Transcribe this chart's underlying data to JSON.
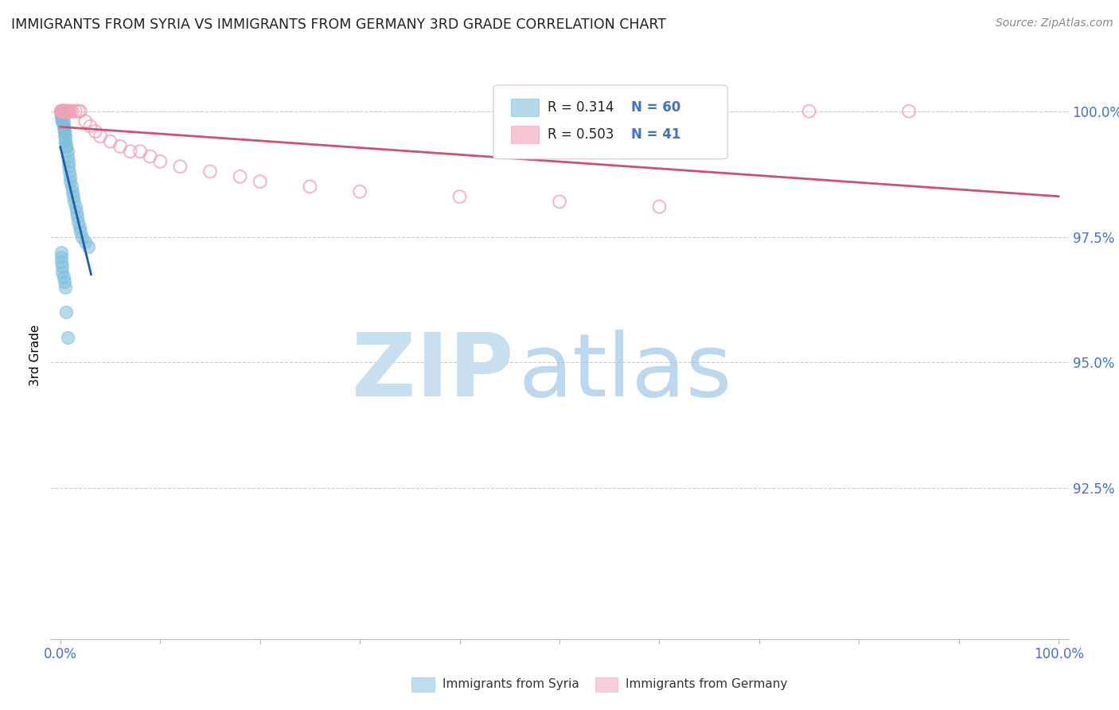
{
  "title": "IMMIGRANTS FROM SYRIA VS IMMIGRANTS FROM GERMANY 3RD GRADE CORRELATION CHART",
  "source": "Source: ZipAtlas.com",
  "ylabel": "3rd Grade",
  "yaxis_labels": [
    "100.0%",
    "97.5%",
    "95.0%",
    "92.5%"
  ],
  "yaxis_values": [
    1.0,
    0.975,
    0.95,
    0.925
  ],
  "xaxis_range": [
    0.0,
    1.0
  ],
  "yaxis_range": [
    0.895,
    1.008
  ],
  "legend_r_blue": "0.314",
  "legend_n_blue": "60",
  "legend_r_pink": "0.503",
  "legend_n_pink": "41",
  "blue_color": "#7fbfdd",
  "pink_color": "#f4a0b5",
  "blue_line_color": "#2060a0",
  "pink_line_color": "#d05070",
  "label_syria": "Immigrants from Syria",
  "label_germany": "Immigrants from Germany",
  "watermark_zip": "ZIP",
  "watermark_atlas": "atlas",
  "blue_scatter_x": [
    0.0005,
    0.001,
    0.001,
    0.001,
    0.001,
    0.001,
    0.001,
    0.001,
    0.001,
    0.001,
    0.001,
    0.001,
    0.002,
    0.002,
    0.002,
    0.002,
    0.002,
    0.002,
    0.003,
    0.003,
    0.003,
    0.003,
    0.004,
    0.004,
    0.004,
    0.005,
    0.005,
    0.005,
    0.006,
    0.006,
    0.007,
    0.007,
    0.008,
    0.008,
    0.009,
    0.01,
    0.01,
    0.011,
    0.012,
    0.013,
    0.014,
    0.015,
    0.016,
    0.017,
    0.018,
    0.019,
    0.02,
    0.022,
    0.025,
    0.028,
    0.001,
    0.001,
    0.001,
    0.002,
    0.002,
    0.003,
    0.004,
    0.005,
    0.006,
    0.007
  ],
  "blue_scatter_y": [
    1.0,
    1.0,
    1.0,
    1.0,
    1.0,
    1.0,
    1.0,
    1.0,
    1.0,
    1.0,
    0.999,
    0.999,
    0.999,
    0.999,
    0.999,
    0.998,
    0.998,
    0.998,
    0.998,
    0.997,
    0.997,
    0.997,
    0.996,
    0.996,
    0.995,
    0.995,
    0.994,
    0.994,
    0.993,
    0.993,
    0.992,
    0.991,
    0.99,
    0.989,
    0.988,
    0.987,
    0.986,
    0.985,
    0.984,
    0.983,
    0.982,
    0.981,
    0.98,
    0.979,
    0.978,
    0.977,
    0.976,
    0.975,
    0.974,
    0.973,
    0.972,
    0.971,
    0.97,
    0.969,
    0.968,
    0.967,
    0.966,
    0.965,
    0.96,
    0.955
  ],
  "pink_scatter_x": [
    0.001,
    0.001,
    0.001,
    0.002,
    0.002,
    0.002,
    0.003,
    0.003,
    0.004,
    0.004,
    0.005,
    0.006,
    0.007,
    0.008,
    0.009,
    0.01,
    0.012,
    0.015,
    0.018,
    0.02,
    0.025,
    0.03,
    0.035,
    0.04,
    0.05,
    0.06,
    0.07,
    0.08,
    0.09,
    0.1,
    0.12,
    0.15,
    0.18,
    0.2,
    0.25,
    0.3,
    0.4,
    0.5,
    0.6,
    0.75,
    0.85
  ],
  "pink_scatter_y": [
    1.0,
    1.0,
    1.0,
    1.0,
    1.0,
    1.0,
    1.0,
    1.0,
    1.0,
    1.0,
    1.0,
    1.0,
    1.0,
    1.0,
    1.0,
    1.0,
    1.0,
    1.0,
    1.0,
    1.0,
    0.998,
    0.997,
    0.996,
    0.995,
    0.994,
    0.993,
    0.992,
    0.992,
    0.991,
    0.99,
    0.989,
    0.988,
    0.987,
    0.986,
    0.985,
    0.984,
    0.983,
    0.982,
    0.981,
    1.0,
    1.0
  ]
}
